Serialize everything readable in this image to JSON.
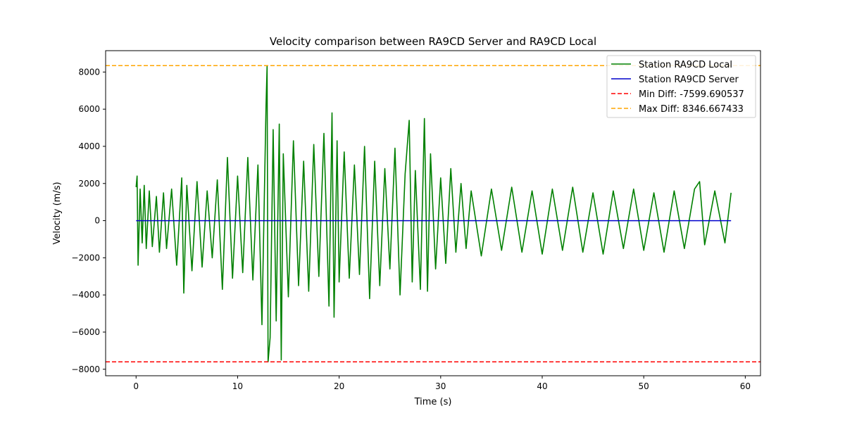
{
  "chart_data": {
    "type": "line",
    "title": "Velocity comparison between RA9CD Server and RA9CD Local",
    "xlabel": "Time (s)",
    "ylabel": "Velocity (m/s)",
    "xlim": [
      -3,
      61.5
    ],
    "ylim": [
      -8350,
      9150
    ],
    "x_ticks": [
      0,
      10,
      20,
      30,
      40,
      50,
      60
    ],
    "x_tick_labels": [
      "0",
      "10",
      "20",
      "30",
      "40",
      "50",
      "60"
    ],
    "y_ticks": [
      -8000,
      -6000,
      -4000,
      -2000,
      0,
      2000,
      4000,
      6000,
      8000
    ],
    "y_tick_labels": [
      "−8000",
      "−6000",
      "−4000",
      "−2000",
      "0",
      "2000",
      "4000",
      "6000",
      "8000"
    ],
    "grid": false,
    "legend_position": "top-right",
    "series": [
      {
        "name": "Station RA9CD Local",
        "color": "#008000",
        "style": "solid",
        "x": [
          0,
          0.1,
          0.2,
          0.4,
          0.6,
          0.8,
          1.0,
          1.3,
          1.6,
          2.0,
          2.3,
          2.7,
          3.0,
          3.5,
          4.0,
          4.5,
          4.7,
          5.0,
          5.5,
          6.0,
          6.5,
          7.0,
          7.5,
          8.0,
          8.5,
          9.0,
          9.5,
          10.0,
          10.5,
          11.0,
          11.5,
          12.0,
          12.4,
          12.8,
          12.9,
          13.0,
          13.2,
          13.5,
          13.8,
          14.1,
          14.3,
          14.5,
          15.0,
          15.5,
          16.0,
          16.5,
          17.0,
          17.5,
          18.0,
          18.5,
          19.0,
          19.3,
          19.5,
          19.8,
          20.0,
          20.5,
          21.0,
          21.5,
          22.0,
          22.5,
          23.0,
          23.5,
          24.0,
          24.5,
          25.0,
          25.5,
          26.0,
          26.5,
          26.9,
          27.2,
          27.5,
          28.0,
          28.4,
          28.7,
          29.0,
          29.5,
          30.0,
          30.5,
          31.0,
          31.5,
          32.0,
          32.5,
          33.0,
          34.0,
          35.0,
          36.0,
          37.0,
          38.0,
          39.0,
          40.0,
          41.0,
          42.0,
          43.0,
          44.0,
          45.0,
          46.0,
          47.0,
          48.0,
          49.0,
          50.0,
          51.0,
          52.0,
          53.0,
          54.0,
          55.0,
          55.5,
          56.0,
          57.0,
          58.0,
          58.6
        ],
        "y": [
          1800,
          2400,
          -2400,
          1700,
          -1200,
          1900,
          -1500,
          1600,
          -1400,
          1300,
          -1700,
          1500,
          -1500,
          1700,
          -2400,
          2300,
          -3900,
          1900,
          -2700,
          2100,
          -2500,
          1600,
          -2000,
          2200,
          -3700,
          3400,
          -3100,
          2400,
          -2800,
          3400,
          -3200,
          3000,
          -5600,
          6200,
          8300,
          -7600,
          -6300,
          4900,
          -5400,
          5200,
          -7500,
          3600,
          -4100,
          4300,
          -3500,
          3200,
          -3800,
          4100,
          -3000,
          4700,
          -4600,
          5800,
          -5200,
          4300,
          -3300,
          3700,
          -3100,
          3000,
          -2900,
          4000,
          -4200,
          3200,
          -3500,
          2800,
          -2600,
          3900,
          -4000,
          2500,
          5400,
          -3300,
          2700,
          -3700,
          5500,
          -3800,
          3600,
          -2600,
          2300,
          -2300,
          2800,
          -1700,
          2000,
          -1500,
          1600,
          -1900,
          1700,
          -1600,
          1800,
          -1700,
          1600,
          -1800,
          1700,
          -1600,
          1800,
          -1700,
          1500,
          -1800,
          1600,
          -1500,
          1700,
          -1600,
          1500,
          -1700,
          1600,
          -1500,
          1700,
          2100,
          -1300,
          1600,
          -1200,
          1500
        ]
      },
      {
        "name": "Station RA9CD Server",
        "color": "#0000cc",
        "style": "solid",
        "x": [
          0,
          58.6
        ],
        "y": [
          0,
          0
        ]
      },
      {
        "name": "Min Diff: -7599.690537",
        "color": "#ff0000",
        "style": "dashed",
        "x": [
          -3,
          61.5
        ],
        "y": [
          -7599.690537,
          -7599.690537
        ]
      },
      {
        "name": "Max Diff: 8346.667433",
        "color": "#ffa500",
        "style": "dashed",
        "x": [
          -3,
          61.5
        ],
        "y": [
          8346.667433,
          8346.667433
        ]
      }
    ]
  }
}
